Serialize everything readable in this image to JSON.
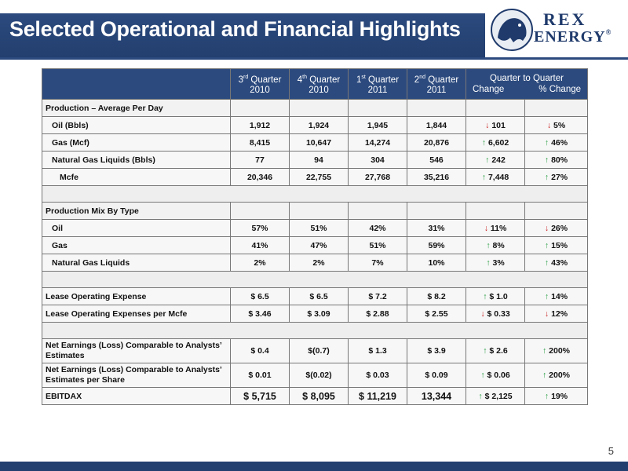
{
  "slide": {
    "title": "Selected Operational and Financial Highlights",
    "page_number": "5",
    "logo": {
      "line1": "REX",
      "line2": "ENERGY",
      "mark": "®"
    }
  },
  "table": {
    "headers": {
      "q3_2010": {
        "q": "3",
        "sup": "rd",
        "word": "Quarter",
        "year": "2010"
      },
      "q4_2010": {
        "q": "4",
        "sup": "th",
        "word": "Quarter",
        "year": "2010"
      },
      "q1_2011": {
        "q": "1",
        "sup": "st",
        "word": "Quarter",
        "year": "2011"
      },
      "q2_2011": {
        "q": "2",
        "sup": "nd",
        "word": "Quarter",
        "year": "2011"
      },
      "qtq": "Quarter to Quarter",
      "change": "Change",
      "pct_change": "% Change"
    },
    "rows": [
      {
        "label": "Production – Average Per Day",
        "type": "section"
      },
      {
        "label": "Oil (Bbls)",
        "v": [
          "1,912",
          "1,924",
          "1,945",
          "1,844"
        ],
        "chg": "101",
        "chg_dir": "down",
        "pct": "5%",
        "pct_dir": "down"
      },
      {
        "label": "Gas (Mcf)",
        "v": [
          "8,415",
          "10,647",
          "14,274",
          "20,876"
        ],
        "chg": "6,602",
        "chg_dir": "up",
        "pct": "46%",
        "pct_dir": "up"
      },
      {
        "label": "Natural Gas Liquids (Bbls)",
        "v": [
          "77",
          "94",
          "304",
          "546"
        ],
        "chg": "242",
        "chg_dir": "up",
        "pct": "80%",
        "pct_dir": "up"
      },
      {
        "label": "Mcfe",
        "v": [
          "20,346",
          "22,755",
          "27,768",
          "35,216"
        ],
        "chg": "7,448",
        "chg_dir": "up",
        "pct": "27%",
        "pct_dir": "up"
      },
      {
        "type": "blank"
      },
      {
        "label": "Production Mix By Type",
        "type": "section"
      },
      {
        "label": "Oil",
        "v": [
          "57%",
          "51%",
          "42%",
          "31%"
        ],
        "chg": "11%",
        "chg_dir": "down",
        "pct": "26%",
        "pct_dir": "down"
      },
      {
        "label": "Gas",
        "v": [
          "41%",
          "47%",
          "51%",
          "59%"
        ],
        "chg": "8%",
        "chg_dir": "up",
        "pct": "15%",
        "pct_dir": "up"
      },
      {
        "label": "Natural Gas Liquids",
        "v": [
          "2%",
          "2%",
          "7%",
          "10%"
        ],
        "chg": "3%",
        "chg_dir": "up",
        "pct": "43%",
        "pct_dir": "up"
      },
      {
        "type": "blank"
      },
      {
        "label": "Lease Operating Expense",
        "v": [
          "$ 6.5",
          "$ 6.5",
          "$ 7.2",
          "$ 8.2"
        ],
        "chg": "$ 1.0",
        "chg_dir": "up",
        "pct": "14%",
        "pct_dir": "up"
      },
      {
        "label": "Lease Operating Expenses per Mcfe",
        "v": [
          "$ 3.46",
          "$ 3.09",
          "$ 2.88",
          "$ 2.55"
        ],
        "chg": "$ 0.33",
        "chg_dir": "down",
        "pct": "12%",
        "pct_dir": "down"
      },
      {
        "type": "blank"
      },
      {
        "label": "Net Earnings (Loss) Comparable to Analysts’ Estimates",
        "v": [
          "$ 0.4",
          "$(0.7)",
          "$ 1.3",
          "$ 3.9"
        ],
        "chg": "$ 2.6",
        "chg_dir": "up",
        "pct": "200%",
        "pct_dir": "up"
      },
      {
        "label": "Net  Earnings (Loss) Comparable to Analysts’ Estimates per Share",
        "v": [
          "$ 0.01",
          "$(0.02)",
          "$ 0.03",
          "$ 0.09"
        ],
        "chg": "$ 0.06",
        "chg_dir": "up",
        "pct": "200%",
        "pct_dir": "up"
      },
      {
        "label": "EBITDAX",
        "v": [
          "$ 5,715",
          "$ 8,095",
          "$ 11,219",
          "13,344"
        ],
        "chg": "$ 2,125",
        "chg_dir": "up",
        "pct": "19%",
        "pct_dir": "up"
      }
    ]
  },
  "colors": {
    "brand_navy": "#2c4a7e",
    "up_arrow": "#1f9a3a",
    "down_arrow": "#c81e1e"
  },
  "icons": {
    "up": "↑",
    "down": "↓",
    "logo": "rex-energy-lion-crest-icon"
  }
}
